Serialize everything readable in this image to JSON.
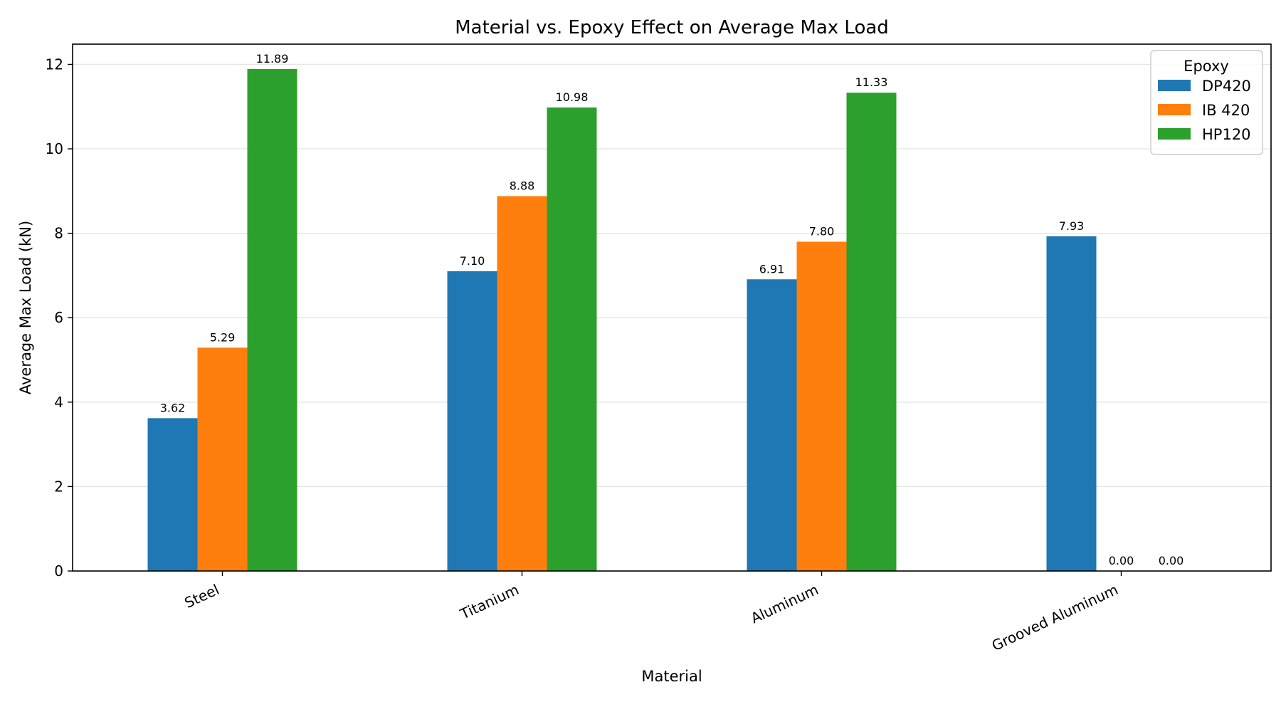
{
  "chart_data": {
    "type": "bar",
    "title": "Material vs. Epoxy Effect on Average Max Load",
    "xlabel": "Material",
    "ylabel": "Average Max Load (kN)",
    "categories": [
      "Steel",
      "Titanium",
      "Aluminum",
      "Grooved Aluminum"
    ],
    "series": [
      {
        "name": "DP420",
        "color": "#1f77b4",
        "values": [
          3.62,
          7.1,
          6.91,
          7.93
        ]
      },
      {
        "name": "IB 420",
        "color": "#ff7f0e",
        "values": [
          5.29,
          8.88,
          7.8,
          0.0
        ]
      },
      {
        "name": "HP120",
        "color": "#2ca02c",
        "values": [
          11.89,
          10.98,
          11.33,
          0.0
        ]
      }
    ],
    "data_labels": [
      [
        "3.62",
        "5.29",
        "11.89"
      ],
      [
        "7.10",
        "8.88",
        "10.98"
      ],
      [
        "6.91",
        "7.80",
        "11.33"
      ],
      [
        "7.93",
        "0.00",
        "0.00"
      ]
    ],
    "yticks": [
      "0",
      "2",
      "4",
      "6",
      "8",
      "10",
      "12"
    ],
    "ytick_values": [
      0,
      2,
      4,
      6,
      8,
      10,
      12
    ],
    "ylim": [
      0,
      12.48
    ],
    "grid": "y",
    "legend": {
      "title": "Epoxy",
      "placement": "top-right"
    }
  }
}
